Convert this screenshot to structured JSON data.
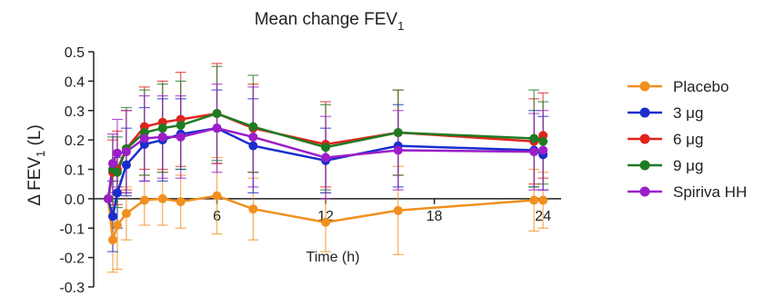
{
  "chart_data": {
    "type": "line",
    "title": "Mean change FEV",
    "title_subscript": "1",
    "xlabel": "Time (h)",
    "ylabel_prefix": "Δ FEV",
    "ylabel_subscript": "1",
    "ylabel_suffix": " (L)",
    "xlim": [
      0,
      25
    ],
    "ylim": [
      -0.3,
      0.5
    ],
    "xticks": [
      6,
      12,
      18,
      24
    ],
    "yticks": [
      "0.5",
      "0.4",
      "0.3",
      "0.2",
      "0.1",
      "0.0",
      "-0.1",
      "-0.2",
      "-0.3"
    ],
    "ytick_values": [
      0.5,
      0.4,
      0.3,
      0.2,
      0.1,
      0.0,
      -0.1,
      -0.2,
      -0.3
    ],
    "grid": false,
    "legend_position": "right",
    "x": [
      0,
      0.25,
      0.5,
      1,
      2,
      3,
      4,
      6,
      8,
      12,
      16,
      23.5,
      24
    ],
    "series": [
      {
        "name": "Placebo",
        "color": "#f0901e",
        "values": [
          0.0,
          -0.14,
          -0.09,
          -0.05,
          -0.005,
          0.0,
          -0.01,
          0.01,
          -0.035,
          -0.08,
          -0.04,
          -0.005,
          -0.005
        ],
        "err_low": [
          0.0,
          -0.25,
          -0.24,
          -0.14,
          -0.09,
          -0.09,
          -0.1,
          -0.12,
          -0.14,
          -0.18,
          -0.19,
          -0.11,
          -0.1
        ],
        "err_high": [
          0.0,
          -0.03,
          0.06,
          0.04,
          0.08,
          0.09,
          0.08,
          0.14,
          0.07,
          0.02,
          0.11,
          0.1,
          0.09
        ]
      },
      {
        "name": "3 μg",
        "color": "#1a2dcc",
        "values": [
          0.0,
          -0.06,
          0.02,
          0.115,
          0.185,
          0.2,
          0.22,
          0.24,
          0.18,
          0.13,
          0.18,
          0.165,
          0.15
        ],
        "err_low": [
          0.0,
          -0.18,
          -0.1,
          0.01,
          0.06,
          0.06,
          0.1,
          0.12,
          0.02,
          0.02,
          0.04,
          0.04,
          0.03
        ],
        "err_high": [
          0.0,
          0.06,
          0.14,
          0.24,
          0.31,
          0.34,
          0.34,
          0.37,
          0.34,
          0.24,
          0.32,
          0.3,
          0.28
        ]
      },
      {
        "name": "6 μg",
        "color": "#e0241c",
        "values": [
          0.0,
          0.09,
          0.1,
          0.17,
          0.245,
          0.26,
          0.27,
          0.29,
          0.24,
          0.185,
          0.225,
          0.195,
          0.215
        ],
        "err_low": [
          0.0,
          -0.02,
          -0.02,
          0.03,
          0.1,
          0.1,
          0.11,
          0.12,
          0.09,
          0.04,
          0.08,
          0.05,
          0.07
        ],
        "err_high": [
          0.0,
          0.2,
          0.23,
          0.3,
          0.38,
          0.4,
          0.43,
          0.46,
          0.39,
          0.33,
          0.37,
          0.34,
          0.36
        ]
      },
      {
        "name": "9 μg",
        "color": "#1f7a24",
        "values": [
          0.0,
          0.1,
          0.09,
          0.17,
          0.225,
          0.24,
          0.25,
          0.29,
          0.245,
          0.175,
          0.225,
          0.205,
          0.195
        ],
        "err_low": [
          0.0,
          -0.01,
          -0.03,
          0.02,
          0.08,
          0.09,
          0.1,
          0.13,
          0.09,
          0.03,
          0.08,
          0.04,
          0.05
        ],
        "err_high": [
          0.0,
          0.21,
          0.21,
          0.31,
          0.37,
          0.39,
          0.4,
          0.45,
          0.42,
          0.32,
          0.37,
          0.37,
          0.33
        ]
      },
      {
        "name": "Spiriva HH",
        "color": "#9b1ec8",
        "values": [
          0.0,
          0.12,
          0.155,
          0.16,
          0.205,
          0.21,
          0.21,
          0.24,
          0.21,
          0.14,
          0.165,
          0.16,
          0.165
        ],
        "err_low": [
          0.0,
          0.02,
          0.04,
          0.02,
          0.06,
          0.07,
          0.07,
          0.09,
          0.04,
          0.0,
          0.03,
          0.03,
          0.03
        ],
        "err_high": [
          0.0,
          0.22,
          0.27,
          0.3,
          0.35,
          0.35,
          0.35,
          0.39,
          0.38,
          0.28,
          0.3,
          0.29,
          0.3
        ]
      }
    ]
  }
}
